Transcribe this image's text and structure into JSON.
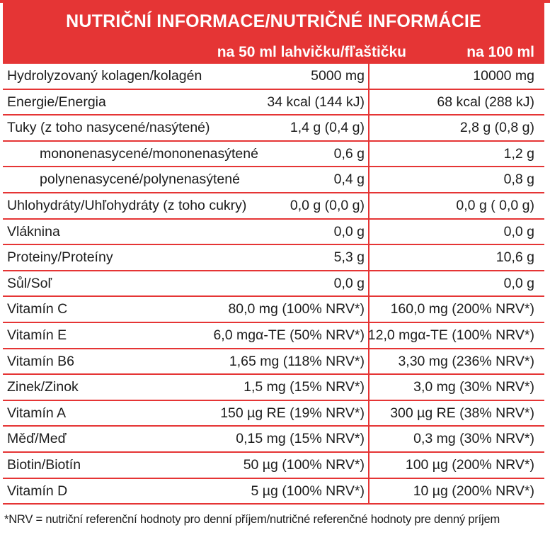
{
  "header": {
    "title": "NUTRIČNÍ INFORMACE/NUTRIČNÉ INFORMÁCIE",
    "col1": "na 50 ml lahvičku/fľaštičku",
    "col2": "na 100 ml"
  },
  "rows": [
    {
      "label": "Hydrolyzovaný kolagen/kolagén",
      "v1": "5000 mg",
      "v2": "10000 mg"
    },
    {
      "label": "Energie/Energia",
      "v1": "34 kcal (144 kJ)",
      "v2": "68 kcal (288 kJ)"
    },
    {
      "label": "Tuky (z toho nasycené/nasýtené)",
      "v1": "1,4 g (0,4 g)",
      "v2": "2,8 g (0,8 g)"
    },
    {
      "label": "mononenasycené/mononenasýtené",
      "v1": "0,6 g",
      "v2": "1,2 g"
    },
    {
      "label": "polynenasycené/polynenasýtené",
      "v1": "0,4 g",
      "v2": "0,8 g"
    },
    {
      "label": "Uhlohydráty/Uhľohydráty (z toho cukry)",
      "v1": "0,0 g (0,0 g)",
      "v2": "0,0 g ( 0,0 g)"
    },
    {
      "label": "Vláknina",
      "v1": "0,0 g",
      "v2": "0,0 g"
    },
    {
      "label": "Proteiny/Proteíny",
      "v1": "5,3 g",
      "v2": "10,6 g"
    },
    {
      "label": "Sůl/Soľ",
      "v1": "0,0 g",
      "v2": "0,0 g"
    },
    {
      "label": "Vitamín C",
      "v1": "80,0 mg (100% NRV*)",
      "v2": "160,0 mg (200% NRV*)"
    },
    {
      "label": "Vitamín E",
      "v1": "6,0 mgα-TE (50% NRV*)",
      "v2": "12,0 mgα-TE (100% NRV*)"
    },
    {
      "label": "Vitamín B6",
      "v1": "1,65 mg (118% NRV*)",
      "v2": "3,30 mg (236% NRV*)"
    },
    {
      "label": "Zinek/Zinok",
      "v1": "1,5 mg (15% NRV*)",
      "v2": "3,0 mg (30% NRV*)"
    },
    {
      "label": "Vitamín A",
      "v1": "150 µg RE (19% NRV*)",
      "v2": "300 µg RE (38% NRV*)"
    },
    {
      "label": "Měď/Meď",
      "v1": "0,15 mg (15% NRV*)",
      "v2": "0,3 mg (30% NRV*)"
    },
    {
      "label": "Biotin/Biotín",
      "v1": "50 µg (100% NRV*)",
      "v2": "100 µg (200% NRV*)"
    },
    {
      "label": "Vitamín D",
      "v1": "5 µg (100% NRV*)",
      "v2": "10 µg (200% NRV*)"
    }
  ],
  "footnote": "*NRV = nutriční referenční hodnoty pro denní příjem/nutričné referenčné hodnoty pre denný príjem",
  "colors": {
    "accent": "#e53535",
    "text": "#1c1c1c",
    "header_text": "#ffffff"
  }
}
